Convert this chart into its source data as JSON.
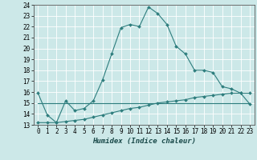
{
  "xlabel": "Humidex (Indice chaleur)",
  "ylabel": "",
  "background_color": "#cce8e8",
  "grid_color": "#ffffff",
  "line_color": "#2d7d7d",
  "xlim": [
    -0.5,
    23.5
  ],
  "ylim": [
    13,
    24
  ],
  "yticks": [
    13,
    14,
    15,
    16,
    17,
    18,
    19,
    20,
    21,
    22,
    23,
    24
  ],
  "xticks": [
    0,
    1,
    2,
    3,
    4,
    5,
    6,
    7,
    8,
    9,
    10,
    11,
    12,
    13,
    14,
    15,
    16,
    17,
    18,
    19,
    20,
    21,
    22,
    23
  ],
  "series1_x": [
    0,
    1,
    2,
    3,
    4,
    5,
    6,
    7,
    8,
    9,
    10,
    11,
    12,
    13,
    14,
    15,
    16,
    17,
    18,
    19,
    20,
    21,
    22,
    23
  ],
  "series1_y": [
    15.9,
    13.9,
    13.2,
    15.2,
    14.3,
    14.5,
    15.2,
    17.1,
    19.5,
    21.9,
    22.2,
    22.0,
    23.8,
    23.2,
    22.2,
    20.2,
    19.5,
    18.0,
    18.0,
    17.8,
    16.5,
    16.3,
    15.9,
    14.9
  ],
  "series2_x": [
    0,
    1,
    2,
    3,
    4,
    5,
    6,
    7,
    8,
    9,
    10,
    11,
    12,
    13,
    14,
    15,
    16,
    17,
    18,
    19,
    20,
    21,
    22,
    23
  ],
  "series2_y": [
    13.2,
    13.2,
    13.2,
    13.3,
    13.4,
    13.5,
    13.7,
    13.9,
    14.1,
    14.3,
    14.5,
    14.6,
    14.8,
    15.0,
    15.1,
    15.2,
    15.3,
    15.5,
    15.6,
    15.7,
    15.8,
    15.9,
    15.9,
    15.9
  ],
  "series3_x": [
    0,
    23
  ],
  "series3_y": [
    15.0,
    15.0
  ],
  "marker_size": 2.0,
  "linewidth": 0.8,
  "tick_fontsize": 5.5,
  "xlabel_fontsize": 6.5
}
